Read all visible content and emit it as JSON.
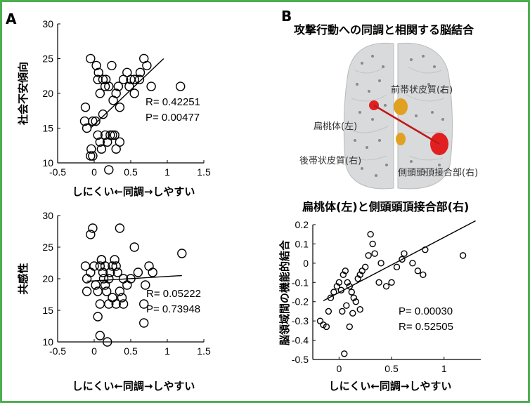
{
  "panel_a_label": "A",
  "panel_b_label": "B",
  "panel_b_title": "攻撃行動への同調と相関する脳結合",
  "brain_labels": {
    "pcc_anterior": "前帯状皮質(右)",
    "amygdala": "扁桃体(左)",
    "pcc_posterior": "後帯状皮質(右)",
    "tpj": "側頭頭頂接合部(右)"
  },
  "colors": {
    "frame": "#4caf50",
    "amygdala": "#e02020",
    "cingulate": "#e0a020",
    "brain": "#d8dadc"
  },
  "chart_data": [
    {
      "type": "scatter",
      "xlabel": "しにくい←同調→しやすい",
      "ylabel": "社会不安傾向",
      "xlim": [
        -0.5,
        1.5
      ],
      "ylim": [
        10,
        30
      ],
      "xticks": [
        "-0.5",
        "0",
        "0.5",
        "1",
        "1.5"
      ],
      "yticks": [
        "10",
        "15",
        "20",
        "25",
        "30"
      ],
      "annotation": [
        "R= 0.42251",
        "P= 0.00477"
      ],
      "fit": [
        [
          -0.05,
          15.0
        ],
        [
          0.95,
          25.0
        ]
      ],
      "points": [
        [
          -0.05,
          25
        ],
        [
          0.03,
          24
        ],
        [
          0.06,
          23
        ],
        [
          0.12,
          22
        ],
        [
          0.16,
          22
        ],
        [
          0.2,
          21
        ],
        [
          0.24,
          24
        ],
        [
          0.3,
          20
        ],
        [
          0.35,
          18
        ],
        [
          0.4,
          22
        ],
        [
          0.45,
          23
        ],
        [
          0.5,
          22
        ],
        [
          0.55,
          20
        ],
        [
          0.62,
          22
        ],
        [
          0.68,
          25
        ],
        [
          0.72,
          24
        ],
        [
          0.78,
          21
        ],
        [
          -0.12,
          18
        ],
        [
          -0.13,
          16
        ],
        [
          -0.1,
          15
        ],
        [
          -0.02,
          16
        ],
        [
          0.02,
          16
        ],
        [
          0.05,
          14
        ],
        [
          0.08,
          13
        ],
        [
          0.1,
          12
        ],
        [
          0.12,
          17
        ],
        [
          0.15,
          14
        ],
        [
          0.18,
          13
        ],
        [
          0.22,
          14
        ],
        [
          0.25,
          14
        ],
        [
          0.28,
          14
        ],
        [
          0.3,
          12
        ],
        [
          0.35,
          13
        ],
        [
          0.2,
          9
        ],
        [
          -0.04,
          12
        ],
        [
          -0.05,
          11
        ],
        [
          -0.02,
          11
        ],
        [
          0.08,
          20
        ],
        [
          0.15,
          21
        ],
        [
          0.05,
          22
        ],
        [
          0.26,
          19
        ],
        [
          0.33,
          21
        ],
        [
          0.48,
          21
        ],
        [
          0.55,
          22
        ],
        [
          0.63,
          23
        ],
        [
          1.18,
          21
        ]
      ]
    },
    {
      "type": "scatter",
      "xlabel": "しにくい←同調→しやすい",
      "ylabel": "共感性",
      "xlim": [
        -0.5,
        1.5
      ],
      "ylim": [
        10,
        30
      ],
      "xticks": [
        "-0.5",
        "0",
        "0.5",
        "1",
        "1.5"
      ],
      "yticks": [
        "10",
        "15",
        "20",
        "25",
        "30"
      ],
      "annotation": [
        "R= 0.05222",
        "P= 0.73948"
      ],
      "fit": [
        [
          -0.1,
          19.6
        ],
        [
          1.2,
          20.5
        ]
      ],
      "points": [
        [
          -0.02,
          28
        ],
        [
          -0.05,
          27
        ],
        [
          0.08,
          11
        ],
        [
          0.18,
          10
        ],
        [
          0.35,
          28
        ],
        [
          0.55,
          25
        ],
        [
          0.6,
          21
        ],
        [
          0.7,
          19
        ],
        [
          0.75,
          22
        ],
        [
          0.8,
          21
        ],
        [
          1.2,
          24
        ],
        [
          0.68,
          13
        ],
        [
          0.68,
          16
        ],
        [
          0.4,
          16
        ],
        [
          0.3,
          16
        ],
        [
          0.25,
          17
        ],
        [
          -0.12,
          22
        ],
        [
          -0.1,
          18
        ],
        [
          -0.1,
          20
        ],
        [
          -0.05,
          21
        ],
        [
          0.0,
          22
        ],
        [
          0.02,
          19
        ],
        [
          0.05,
          18
        ],
        [
          0.08,
          22
        ],
        [
          0.1,
          23
        ],
        [
          0.12,
          21
        ],
        [
          0.13,
          20
        ],
        [
          0.15,
          19
        ],
        [
          0.17,
          18
        ],
        [
          0.2,
          20
        ],
        [
          0.22,
          21
        ],
        [
          0.25,
          22
        ],
        [
          0.28,
          23
        ],
        [
          0.3,
          22
        ],
        [
          0.32,
          21
        ],
        [
          0.35,
          18
        ],
        [
          0.38,
          17
        ],
        [
          0.4,
          20
        ],
        [
          0.45,
          19
        ],
        [
          0.5,
          20
        ],
        [
          0.05,
          14
        ],
        [
          0.1,
          23
        ],
        [
          0.15,
          22
        ],
        [
          0.2,
          16
        ],
        [
          0.08,
          16
        ]
      ]
    },
    {
      "type": "scatter",
      "title": "扁桃体(左)と側頭頭頂接合部(右)",
      "xlabel": "しにくい←同調→しやすい",
      "ylabel": "脳領域間の機能的結合",
      "xlim": [
        -0.25,
        1.35
      ],
      "ylim": [
        -0.5,
        0.2
      ],
      "xticks": [
        "0",
        "0.5",
        "1"
      ],
      "yticks": [
        "0.2",
        "0.1",
        "0",
        "-0.1",
        "-0.2",
        "-0.3",
        "-0.4",
        "-0.5"
      ],
      "annotation": [
        "P= 0.00030",
        "R= 0.52505"
      ],
      "fit": [
        [
          -0.15,
          -0.195
        ],
        [
          1.3,
          0.22
        ]
      ],
      "points": [
        [
          -0.18,
          -0.3
        ],
        [
          -0.15,
          -0.32
        ],
        [
          -0.12,
          -0.33
        ],
        [
          -0.1,
          -0.25
        ],
        [
          -0.08,
          -0.18
        ],
        [
          -0.05,
          -0.15
        ],
        [
          -0.02,
          -0.12
        ],
        [
          0.0,
          -0.1
        ],
        [
          0.02,
          -0.14
        ],
        [
          0.04,
          -0.06
        ],
        [
          0.06,
          -0.04
        ],
        [
          0.08,
          -0.1
        ],
        [
          0.1,
          -0.12
        ],
        [
          0.12,
          -0.15
        ],
        [
          0.14,
          -0.18
        ],
        [
          0.16,
          -0.2
        ],
        [
          0.18,
          -0.08
        ],
        [
          0.2,
          -0.06
        ],
        [
          0.22,
          -0.04
        ],
        [
          0.25,
          -0.02
        ],
        [
          0.28,
          0.04
        ],
        [
          0.3,
          0.15
        ],
        [
          0.32,
          0.1
        ],
        [
          0.34,
          0.05
        ],
        [
          0.38,
          -0.1
        ],
        [
          0.4,
          0.0
        ],
        [
          0.45,
          -0.12
        ],
        [
          0.5,
          -0.1
        ],
        [
          0.55,
          -0.02
        ],
        [
          0.6,
          0.02
        ],
        [
          0.62,
          0.05
        ],
        [
          0.7,
          0.0
        ],
        [
          0.75,
          -0.04
        ],
        [
          0.8,
          -0.06
        ],
        [
          0.82,
          0.07
        ],
        [
          1.18,
          0.04
        ],
        [
          0.05,
          -0.47
        ],
        [
          0.1,
          -0.33
        ],
        [
          0.03,
          -0.25
        ],
        [
          0.07,
          -0.22
        ],
        [
          0.13,
          -0.26
        ],
        [
          0.2,
          -0.24
        ]
      ]
    }
  ]
}
